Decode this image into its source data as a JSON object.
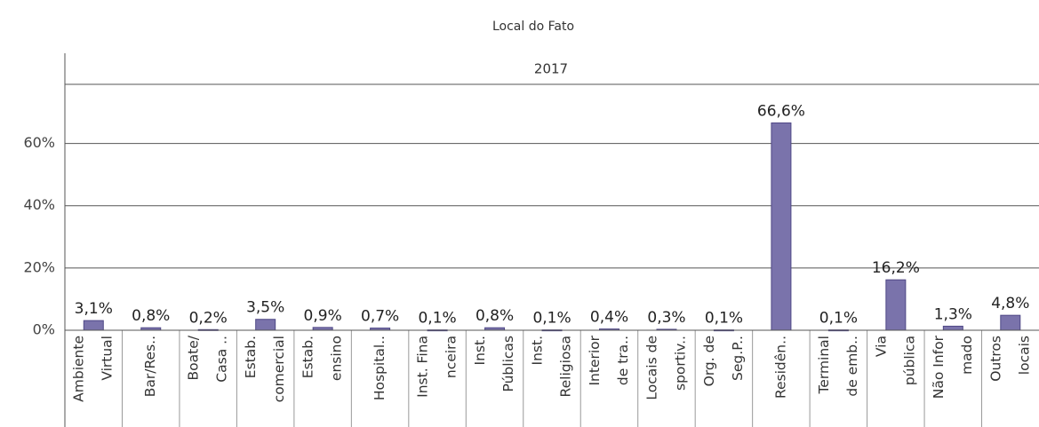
{
  "chart_data": {
    "type": "bar",
    "title": "Local do Fato",
    "column_header": "2017",
    "categories": [
      [
        "Ambiente",
        "Virtual"
      ],
      [
        "Bar/Res.."
      ],
      [
        "Boate/",
        "Casa .."
      ],
      [
        "Estab.",
        "comercial"
      ],
      [
        "Estab.",
        "ensino"
      ],
      [
        "Hospital.."
      ],
      [
        "Inst. Fina",
        "nceira"
      ],
      [
        "Inst.",
        "Públicas"
      ],
      [
        "Inst.",
        "Religiosa"
      ],
      [
        "Interior",
        "de tra.."
      ],
      [
        "Locais de",
        "sportiv.."
      ],
      [
        "Org. de",
        "Seg.P.."
      ],
      [
        "Residên.."
      ],
      [
        "Terminal",
        "de emb.."
      ],
      [
        "Via",
        "pública"
      ],
      [
        "Não Infor",
        "mado"
      ],
      [
        "Outros",
        "locais"
      ]
    ],
    "values": [
      3.1,
      0.8,
      0.2,
      3.5,
      0.9,
      0.7,
      0.1,
      0.8,
      0.1,
      0.4,
      0.3,
      0.1,
      66.6,
      0.1,
      16.2,
      1.3,
      4.8
    ],
    "value_labels": [
      "3,1%",
      "0,8%",
      "0,2%",
      "3,5%",
      "0,9%",
      "0,7%",
      "0,1%",
      "0,8%",
      "0,1%",
      "0,4%",
      "0,3%",
      "0,1%",
      "66,6%",
      "0,1%",
      "16,2%",
      "1,3%",
      "4,8%"
    ],
    "color": "#7a73ab",
    "ylim": [
      0,
      79
    ],
    "yticks": [
      {
        "value": 0,
        "label": "0%"
      },
      {
        "value": 20,
        "label": "20%"
      },
      {
        "value": 40,
        "label": "40%"
      },
      {
        "value": 60,
        "label": "60%"
      }
    ],
    "grid": true
  }
}
